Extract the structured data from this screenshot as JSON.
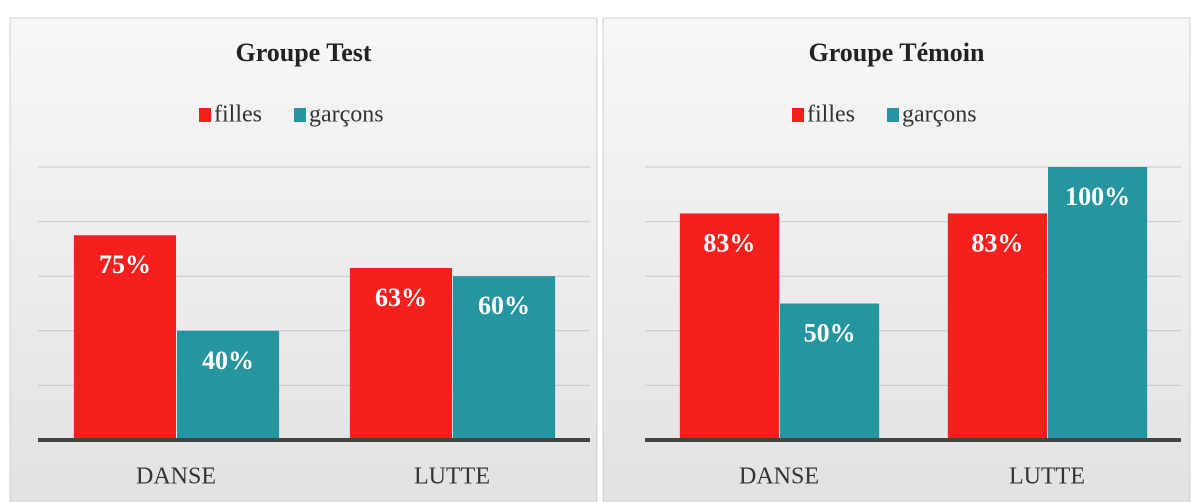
{
  "chart_data": [
    {
      "type": "bar",
      "title": "Groupe Test",
      "categories": [
        "DANSE",
        "LUTTE"
      ],
      "series": [
        {
          "name": "filles",
          "color": "#f5201e",
          "values": [
            75,
            63
          ],
          "value_labels": [
            "75%",
            "63%"
          ]
        },
        {
          "name": "garçons",
          "color": "#2596a0",
          "values": [
            40,
            60
          ],
          "value_labels": [
            "40%",
            "60%"
          ]
        }
      ],
      "ylim": [
        0,
        100
      ],
      "yticks": [
        0,
        20,
        40,
        60,
        80,
        100
      ],
      "grid": true,
      "legend": "top"
    },
    {
      "type": "bar",
      "title": "Groupe Témoin",
      "categories": [
        "DANSE",
        "LUTTE"
      ],
      "series": [
        {
          "name": "filles",
          "color": "#f5201e",
          "values": [
            83,
            83
          ],
          "value_labels": [
            "83%",
            "83%"
          ]
        },
        {
          "name": "garçons",
          "color": "#2596a0",
          "values": [
            50,
            100
          ],
          "value_labels": [
            "50%",
            "100%"
          ]
        }
      ],
      "ylim": [
        0,
        100
      ],
      "yticks": [
        0,
        20,
        40,
        60,
        80,
        100
      ],
      "grid": true,
      "legend": "top"
    }
  ]
}
